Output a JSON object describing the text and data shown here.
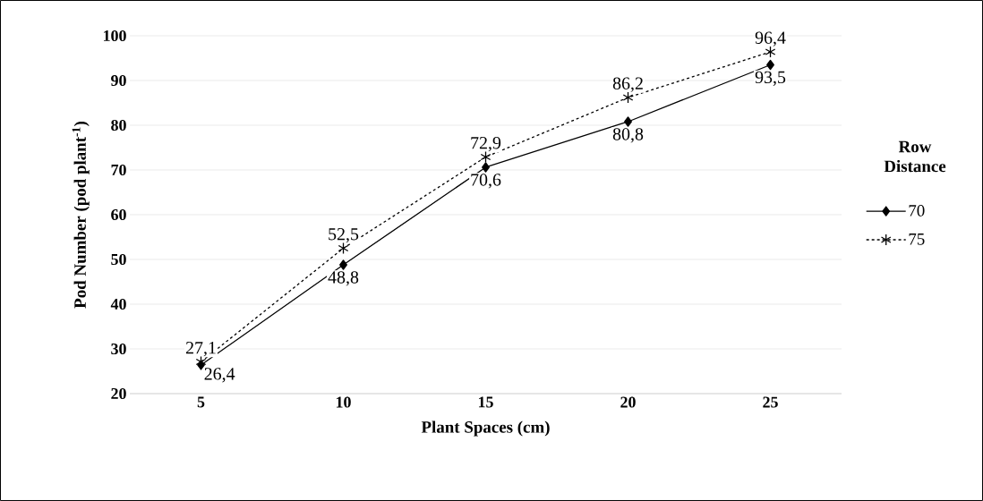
{
  "chart_data": {
    "type": "line",
    "xlabel": "Plant Spaces (cm)",
    "ylabel": "Pod Number (pod plant$^{-1}$)",
    "categories": [
      "5",
      "10",
      "15",
      "20",
      "25"
    ],
    "series": [
      {
        "name": "70",
        "color": "#000000",
        "values": [
          26.4,
          48.8,
          70.6,
          80.8,
          93.5
        ],
        "marker": "diamond",
        "line_style": "solid",
        "value_labels": [
          "26,4",
          "48,8",
          "70,6",
          "80,8",
          "93,5"
        ]
      },
      {
        "name": "75",
        "color": "#000000",
        "values": [
          27.1,
          52.5,
          72.9,
          86.2,
          96.4
        ],
        "marker": "cross",
        "line_style": "dashed",
        "value_labels": [
          "27,1",
          "52,5",
          "72,9",
          "86,2",
          "96,4"
        ]
      }
    ],
    "ylim": [
      20,
      100
    ],
    "yticks": [
      20,
      30,
      40,
      50,
      60,
      70,
      80,
      90,
      100
    ],
    "grid": "y",
    "legend": "right",
    "legend_title": "Row Distance"
  }
}
